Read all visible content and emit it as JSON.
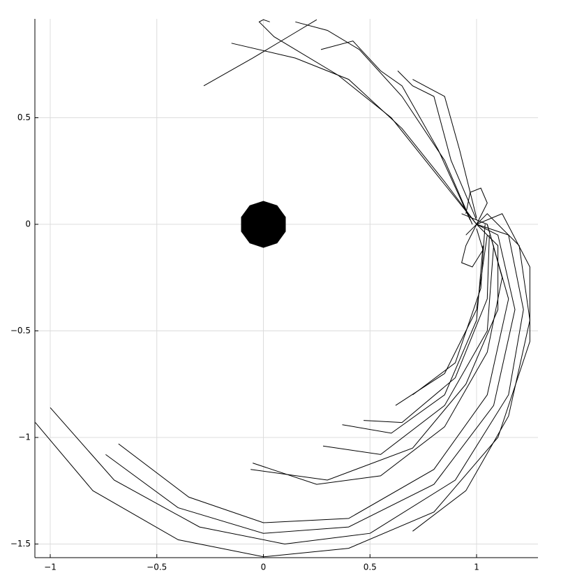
{
  "chart_data": {
    "type": "line",
    "color": "#000000",
    "grid": true,
    "xlim": [
      -1.072,
      1.288
    ],
    "ylim": [
      -1.564,
      0.964
    ],
    "xticks": [
      {
        "value": -1,
        "label": "−1"
      },
      {
        "value": -0.5,
        "label": "−0.5"
      },
      0,
      0.5,
      1
    ],
    "yticks": [
      {
        "value": -1.5,
        "label": "−1.5"
      },
      {
        "value": -1,
        "label": "−1"
      },
      {
        "value": -0.5,
        "label": "−0.5"
      },
      0,
      0.5
    ],
    "obstacle": {
      "x": 0,
      "y": 0,
      "radius": 0.11,
      "color": "#000000"
    },
    "series": [
      {
        "x": [
          -1.07,
          -0.8,
          -0.4,
          0,
          0.4,
          0.8,
          1.1,
          1.25,
          1.25,
          1.12,
          1.0
        ],
        "y": [
          -0.93,
          -1.25,
          -1.48,
          -1.56,
          -1.52,
          -1.35,
          -1.0,
          -0.55,
          -0.2,
          0.05,
          0.0
        ]
      },
      {
        "x": [
          -1.0,
          -0.7,
          -0.3,
          0.1,
          0.5,
          0.9,
          1.15,
          1.22,
          1.15,
          1.0
        ],
        "y": [
          -0.86,
          -1.2,
          -1.42,
          -1.5,
          -1.45,
          -1.2,
          -0.8,
          -0.4,
          -0.05,
          0.0
        ]
      },
      {
        "x": [
          -0.74,
          -0.4,
          0,
          0.4,
          0.8,
          1.08,
          1.18,
          1.1,
          1.0
        ],
        "y": [
          -1.08,
          -1.33,
          -1.45,
          -1.42,
          -1.22,
          -0.85,
          -0.4,
          -0.05,
          0.0
        ]
      },
      {
        "x": [
          -0.68,
          -0.35,
          0,
          0.4,
          0.8,
          1.05,
          1.15,
          1.05
        ],
        "y": [
          -1.03,
          -1.28,
          -1.4,
          -1.38,
          -1.15,
          -0.8,
          -0.35,
          0.0
        ]
      },
      {
        "x": [
          0.7,
          0.95,
          1.15,
          1.25,
          1.2,
          1.05,
          0.95
        ],
        "y": [
          -1.44,
          -1.25,
          -0.9,
          -0.45,
          -0.1,
          0.05,
          -0.05
        ]
      },
      {
        "x": [
          -0.05,
          0.25,
          0.55,
          0.85,
          1.05,
          1.12,
          1.05,
          0.93
        ],
        "y": [
          -1.12,
          -1.22,
          -1.18,
          -0.95,
          -0.6,
          -0.25,
          0.0,
          0.05
        ]
      },
      {
        "x": [
          -0.06,
          0.3,
          0.7,
          0.95,
          1.1,
          1.1,
          1.0
        ],
        "y": [
          -1.15,
          -1.2,
          -1.05,
          -0.75,
          -0.4,
          -0.1,
          0.0
        ]
      },
      {
        "x": [
          0.28,
          0.55,
          0.85,
          1.05,
          1.08
        ],
        "y": [
          -1.04,
          -1.08,
          -0.85,
          -0.5,
          -0.1
        ]
      },
      {
        "x": [
          0.37,
          0.6,
          0.85,
          1.0,
          1.03
        ],
        "y": [
          -0.94,
          -0.98,
          -0.8,
          -0.45,
          -0.1
        ]
      },
      {
        "x": [
          0.47,
          0.65,
          0.9,
          1.05,
          1.06
        ],
        "y": [
          -0.92,
          -0.93,
          -0.72,
          -0.35,
          -0.05
        ]
      },
      {
        "x": [
          0.62,
          0.85,
          1.0,
          1.05
        ],
        "y": [
          -0.85,
          -0.7,
          -0.4,
          -0.05
        ]
      },
      {
        "x": [
          0.7,
          0.9,
          1.02,
          1.04
        ],
        "y": [
          -0.8,
          -0.65,
          -0.3,
          0.0
        ]
      },
      {
        "x": [
          1.0,
          0.85,
          0.65,
          0.4,
          0.15,
          -0.15
        ],
        "y": [
          0.0,
          0.2,
          0.45,
          0.68,
          0.78,
          0.85
        ]
      },
      {
        "x": [
          1.0,
          0.8,
          0.6,
          0.35,
          0.05,
          -0.02,
          0.0,
          0.03
        ],
        "y": [
          0.0,
          0.25,
          0.5,
          0.7,
          0.88,
          0.95,
          0.96,
          0.95
        ]
      },
      {
        "x": [
          0.98,
          0.85,
          0.65,
          0.45,
          0.3,
          0.15
        ],
        "y": [
          0.0,
          0.3,
          0.6,
          0.82,
          0.91,
          0.95
        ]
      },
      {
        "x": [
          0.97,
          0.82,
          0.65,
          0.55,
          0.42,
          0.27
        ],
        "y": [
          0.02,
          0.35,
          0.65,
          0.72,
          0.86,
          0.82
        ]
      },
      {
        "x": [
          1.0,
          0.88,
          0.8,
          0.7,
          0.63
        ],
        "y": [
          0.02,
          0.3,
          0.6,
          0.65,
          0.72
        ]
      },
      {
        "x": [
          1.0,
          0.92,
          0.85,
          0.7
        ],
        "y": [
          0.03,
          0.35,
          0.6,
          0.68
        ]
      },
      {
        "x": [
          -0.28,
          -0.05,
          0.15,
          0.25
        ],
        "y": [
          0.65,
          0.78,
          0.9,
          0.96
        ]
      },
      {
        "x": [
          0.95,
          0.97,
          1.02,
          1.05,
          1.0,
          0.95,
          0.93,
          0.98,
          1.03,
          1.0
        ],
        "y": [
          0.05,
          0.15,
          0.17,
          0.1,
          0.0,
          -0.1,
          -0.18,
          -0.2,
          -0.12,
          -0.02
        ]
      }
    ]
  }
}
